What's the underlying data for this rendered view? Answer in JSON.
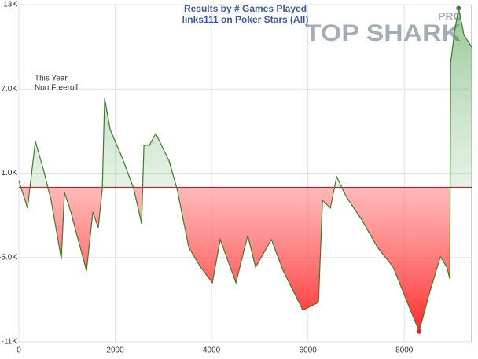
{
  "chart_data": {
    "type": "line",
    "title": "Results by # Games Played",
    "subtitle": "links111 on Poker Stars (All)",
    "annotations": [
      "This Year",
      "Non Freeroll"
    ],
    "logo": {
      "text": "TOP SHARK",
      "badge": "PRO"
    },
    "baseline": 0,
    "grid": true,
    "xlim": [
      0,
      9400
    ],
    "xticks": [
      0,
      2000,
      4000,
      6000,
      8000
    ],
    "ylim": [
      -11000,
      13000
    ],
    "yticks": [
      {
        "value": 13000,
        "label": "13K"
      },
      {
        "value": 7000,
        "label": "7.0K"
      },
      {
        "value": 1000,
        "label": "1.0K"
      },
      {
        "value": -5000,
        "label": "-5.0K"
      },
      {
        "value": -11000,
        "label": "-11K"
      }
    ],
    "series": [
      {
        "color": "#3e7a2e",
        "x": [
          0,
          180,
          343,
          506,
          669,
          882,
          947,
          1078,
          1208,
          1404,
          1535,
          1649,
          1731,
          1780,
          1894,
          2139,
          2384,
          2547,
          2596,
          2710,
          2841,
          3118,
          3282,
          3527,
          3771,
          4016,
          4180,
          4506,
          4751,
          4914,
          5241,
          5486,
          5894,
          6220,
          6302,
          6465,
          6596,
          6792,
          7118,
          7445,
          7771,
          8098,
          8310,
          8506,
          8751,
          8882,
          8947,
          8963,
          9045,
          9127,
          9241,
          9400
        ],
        "values": [
          470,
          -1480,
          3270,
          1310,
          -930,
          -5110,
          -370,
          -1760,
          -3440,
          -5950,
          -1760,
          -2880,
          -90,
          6340,
          4110,
          2150,
          -90,
          -2600,
          2990,
          2990,
          3830,
          1870,
          -90,
          -4280,
          -5690,
          -6800,
          -3720,
          -6800,
          -3440,
          -5690,
          -3720,
          -5950,
          -8750,
          -8190,
          -930,
          -1480,
          750,
          -650,
          -2330,
          -4280,
          -5690,
          -8490,
          -10260,
          -7740,
          -4940,
          -5690,
          -6520,
          8860,
          11100,
          12750,
          10820,
          9980
        ]
      }
    ],
    "min_marker": {
      "color": "#e02020",
      "index": 42
    },
    "max_marker": {
      "color": "#3e7a2e",
      "index": 49
    }
  }
}
